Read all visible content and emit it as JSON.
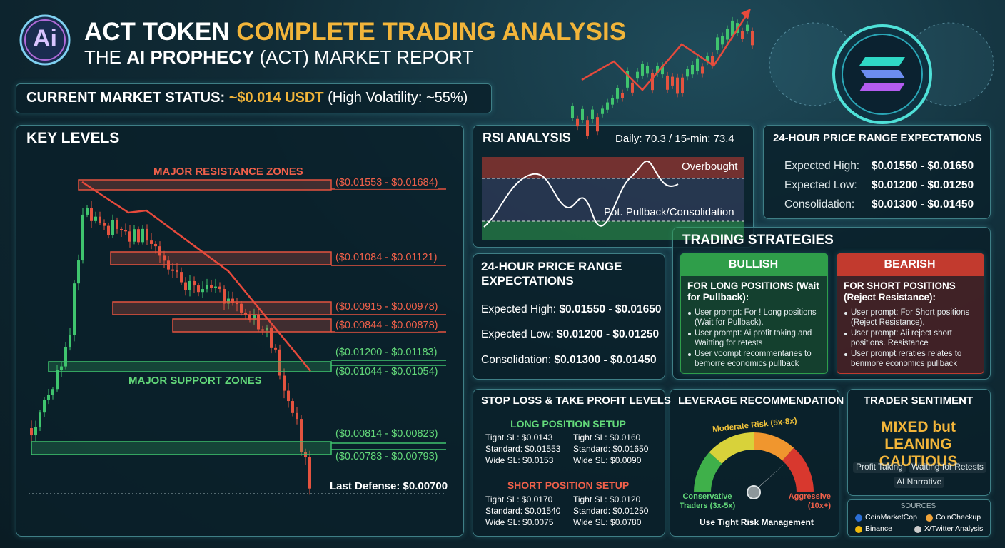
{
  "header": {
    "logo": "Ai",
    "title_a": "ACT TOKEN",
    "title_b": "COMPLETE TRADING ANALYSIS",
    "subtitle_pre": "THE",
    "subtitle_bold": "AI PROPHECY",
    "subtitle_post": "(ACT) MARKET REPORT"
  },
  "status": {
    "label": "CURRENT MARKET STATUS:",
    "price": "~$0.014 USDT",
    "note": "(High Volatility: ~55%)"
  },
  "key_levels": {
    "title": "KEY LEVELS",
    "resistance_label": "MAJOR RESISTANCE ZONES",
    "support_label": "MAJOR SUPPORT ZONES",
    "resistance": [
      "($0.01553 - $0.01684)",
      "($0.01084 - $0.01121)",
      "($0.00915 - $0.00978)",
      "($0.00844 - $0.00878)"
    ],
    "support": [
      "($0.01200 - $0.01183)",
      "($0.01044 - $0.01054)",
      "($0.00814 - $0.00823)",
      "($0.00783 - $0.00793)"
    ],
    "last_defense": "Last Defense: $0.00700"
  },
  "rsi": {
    "title": "RSI ANALYSIS",
    "readings": "Daily: 70.3 / 15-min: 73.4",
    "overbought": "Overbought",
    "pullback": "Pot. Pullback/Consolidation"
  },
  "range_top": {
    "title": "24-HOUR PRICE RANGE EXPECTATIONS",
    "rows": [
      [
        "Expected High:",
        "$0.01550 - $0.01650"
      ],
      [
        "Expected Low:",
        "$0.01200 - $0.01250"
      ],
      [
        "Consolidation:",
        "$0.01300 - $0.01450"
      ]
    ]
  },
  "range_mid": {
    "title": "24-HOUR PRICE RANGE EXPECTATIONS",
    "rows": [
      [
        "Expected High:",
        "$0.01550 - $0.01650"
      ],
      [
        "Expected Low:",
        "$0.01200 - $0.01250"
      ],
      [
        "Consolidation:",
        "$0.01300 - $0.01450"
      ]
    ]
  },
  "strategies": {
    "title": "TRADING STRATEGIES",
    "bullish": {
      "label": "BULLISH",
      "heading": "FOR LONG POSITIONS (Wait for Pullback):",
      "bullets": [
        "User prompt: For ! Long positions (Wait for Pullback).",
        "User prompt: Ai profit taking and Waitting for retests",
        "User voompt recommentaries to bemorre economics pullback"
      ]
    },
    "bearish": {
      "label": "BEARISH",
      "heading": "FOR SHORT POSITIONS (Reject Resistance):",
      "bullets": [
        "User prompt: For Short positions (Reject Resistance).",
        "User prompt: Aii reject short positions. Resistance",
        "User prompt reraties relates to benmore economics pullback"
      ]
    }
  },
  "stop_loss": {
    "title": "STOP LOSS & TAKE PROFIT LEVELS",
    "long": {
      "title": "LONG POSITION SETUP",
      "left": [
        "Tight SL: $0.0143",
        "Standard: $0.01553",
        "Wide SL: $0.0153"
      ],
      "right": [
        "Tight SL: $0.0160",
        "Standard: $0.01650",
        "Wide SL: $0.0090"
      ]
    },
    "short": {
      "title": "SHORT POSITION SETUP",
      "left": [
        "Tight SL: $0.0170",
        "Standard: $0.01540",
        "Wide SL: $0.0075"
      ],
      "right": [
        "Tight SL: $0.0120",
        "Standard: $0.01250",
        "Wide SL: $0.0780"
      ]
    }
  },
  "leverage": {
    "title": "LEVERAGE RECOMMENDATION",
    "moderate": "Moderate Risk (5x-8x)",
    "conservative": "Conservative Traders (3x-5x)",
    "aggressive": "Aggressive (10x+)",
    "footer": "Use Tight Risk Management"
  },
  "sentiment": {
    "title": "TRADER SENTIMENT",
    "verdict_a": "MIXED",
    "verdict_b": "but",
    "verdict_c": "LEANING CAUTIOUS",
    "tags": [
      "Profit Taking",
      "Waiting for Retests",
      "AI Narrative"
    ]
  },
  "sources": {
    "title": "SOURCES",
    "items": [
      "CoinMarketCop",
      "CoinCheckup",
      "Binance",
      "X/Twitter Analysis"
    ]
  }
}
